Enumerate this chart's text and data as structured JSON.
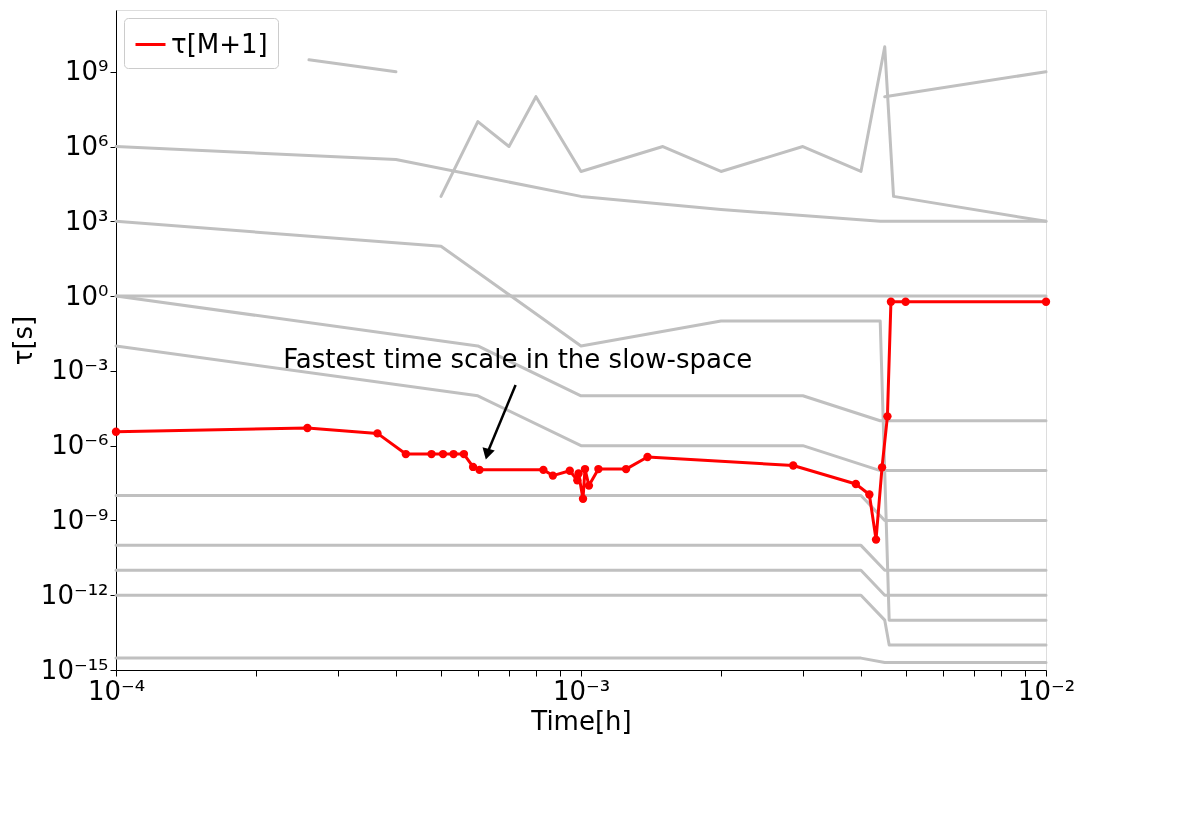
{
  "chart_data": {
    "type": "line",
    "xlabel": "Time[h]",
    "ylabel": "τ[s]",
    "log": "xy",
    "grid": false,
    "legend": "top left",
    "xlim": [
      0.0001,
      0.01
    ],
    "ylim": [
      1e-15,
      300000000000.0
    ],
    "xticks": [
      {
        "value": 0.0001,
        "label": "10⁻⁴"
      },
      {
        "value": 0.0002,
        "label": null
      },
      {
        "value": 0.0003,
        "label": null
      },
      {
        "value": 0.0004,
        "label": null
      },
      {
        "value": 0.0005,
        "label": null
      },
      {
        "value": 0.0006,
        "label": null
      },
      {
        "value": 0.0007,
        "label": null
      },
      {
        "value": 0.0008,
        "label": null
      },
      {
        "value": 0.0009,
        "label": null
      },
      {
        "value": 0.001,
        "label": "10⁻³"
      },
      {
        "value": 0.002,
        "label": null
      },
      {
        "value": 0.003,
        "label": null
      },
      {
        "value": 0.004,
        "label": null
      },
      {
        "value": 0.005,
        "label": null
      },
      {
        "value": 0.006,
        "label": null
      },
      {
        "value": 0.007,
        "label": null
      },
      {
        "value": 0.008,
        "label": null
      },
      {
        "value": 0.009,
        "label": null
      },
      {
        "value": 0.01,
        "label": "10⁻²"
      }
    ],
    "yticks": [
      {
        "value": 1e-15,
        "label": "10⁻¹⁵"
      },
      {
        "value": 1e-12,
        "label": "10⁻¹²"
      },
      {
        "value": 1e-09,
        "label": "10⁻⁹"
      },
      {
        "value": 1e-06,
        "label": "10⁻⁶"
      },
      {
        "value": 0.001,
        "label": "10⁻³"
      },
      {
        "value": 1,
        "label": "10⁰"
      },
      {
        "value": 1000,
        "label": "10³"
      },
      {
        "value": 1000000,
        "label": "10⁶"
      },
      {
        "value": 1000000000,
        "label": "10⁹"
      }
    ],
    "annotations": [
      {
        "text": "Fastest time scale in the slow-space",
        "x": 0.00063,
        "y": 5.4e-07
      }
    ],
    "series": [
      {
        "color": "#c0c0c0",
        "marker": "none",
        "x": [
          0.00026,
          0.0004
        ],
        "values": [
          3000000000.0,
          1000000000.0
        ]
      },
      {
        "color": "#c0c0c0",
        "marker": "none",
        "x": [
          0.0045,
          0.01
        ],
        "values": [
          100000000.0,
          1000000000.0
        ]
      },
      {
        "color": "#c0c0c0",
        "marker": "none",
        "x": [
          0.0001,
          0.0004,
          0.001,
          0.002,
          0.0044,
          0.01
        ],
        "values": [
          1000000.0,
          300000.0,
          10000.0,
          3000.0,
          1000.0,
          1000.0
        ]
      },
      {
        "color": "#c0c0c0",
        "marker": "none",
        "x": [
          0.0005,
          0.0006,
          0.0007,
          0.0008,
          0.001,
          0.0015,
          0.002,
          0.003,
          0.004,
          0.0045,
          0.0047,
          0.01
        ],
        "values": [
          10000.0,
          10000000.0,
          1000000.0,
          100000000.0,
          100000.0,
          1000000.0,
          100000.0,
          1000000.0,
          100000.0,
          10000000000.0,
          10000.0,
          1000.0
        ]
      },
      {
        "color": "#c0c0c0",
        "marker": "none",
        "x": [
          0.0001,
          0.01
        ],
        "values": [
          1,
          1
        ]
      },
      {
        "color": "#c0c0c0",
        "marker": "none",
        "x": [
          0.0001,
          0.0005,
          0.001,
          0.002,
          0.0044,
          0.0046,
          0.01
        ],
        "values": [
          1000,
          100,
          0.01,
          0.1,
          0.1,
          1e-13,
          1e-13
        ]
      },
      {
        "color": "#c0c0c0",
        "marker": "none",
        "x": [
          0.0001,
          0.0006,
          0.001,
          0.003,
          0.0044,
          0.0046,
          0.01
        ],
        "values": [
          1,
          0.01,
          0.0001,
          0.0001,
          1e-05,
          1e-05,
          1e-05
        ]
      },
      {
        "color": "#c0c0c0",
        "marker": "none",
        "x": [
          0.0001,
          0.0006,
          0.001,
          0.003,
          0.0044,
          0.0046,
          0.01
        ],
        "values": [
          0.01,
          0.0001,
          1e-06,
          1e-06,
          1e-07,
          1e-07,
          1e-07
        ]
      },
      {
        "color": "#c0c0c0",
        "marker": "none",
        "x": [
          0.0001,
          0.001,
          0.004,
          0.0045,
          0.0046,
          0.01
        ],
        "values": [
          1e-08,
          1e-08,
          1e-08,
          1e-09,
          1e-09,
          1e-09
        ]
      },
      {
        "color": "#c0c0c0",
        "marker": "none",
        "x": [
          0.0001,
          0.001,
          0.004,
          0.0045,
          0.0046,
          0.01
        ],
        "values": [
          1e-10,
          1e-10,
          1e-10,
          1e-11,
          1e-11,
          1e-11
        ]
      },
      {
        "color": "#c0c0c0",
        "marker": "none",
        "x": [
          0.0001,
          0.001,
          0.004,
          0.0045,
          0.0046,
          0.01
        ],
        "values": [
          1e-11,
          1e-11,
          1e-11,
          1e-12,
          1e-12,
          1e-12
        ]
      },
      {
        "color": "#c0c0c0",
        "marker": "none",
        "x": [
          0.0001,
          0.004,
          0.0045,
          0.0046,
          0.01
        ],
        "values": [
          1e-12,
          1e-12,
          1e-13,
          1e-14,
          1e-14
        ]
      },
      {
        "color": "#c0c0c0",
        "marker": "none",
        "x": [
          0.0001,
          0.004,
          0.0045,
          0.0046,
          0.01
        ],
        "values": [
          3e-15,
          3e-15,
          2e-15,
          2e-15,
          2e-15
        ]
      },
      {
        "name": "τ[M+1]",
        "color": "#ff0000",
        "marker": "circle",
        "x": [
          0.0001,
          0.000258,
          0.000365,
          0.00042,
          0.000477,
          0.000505,
          0.000532,
          0.00056,
          0.000586,
          0.000605,
          0.00083,
          0.00087,
          0.000946,
          0.000982,
          0.000988,
          0.00101,
          0.00102,
          0.00104,
          0.00109,
          0.00125,
          0.00139,
          0.00286,
          0.0039,
          0.00417,
          0.00431,
          0.00444,
          0.00456,
          0.00464,
          0.00499,
          0.01
        ],
        "values": [
          3.6e-06,
          5.1e-06,
          3.1e-06,
          4.6e-07,
          4.6e-07,
          4.6e-07,
          4.6e-07,
          4.6e-07,
          1.4e-07,
          1.07e-07,
          1.07e-07,
          6.3e-08,
          9.8e-08,
          4.1e-08,
          7.6e-08,
          7.4e-09,
          1.15e-07,
          2.5e-08,
          1.15e-07,
          1.15e-07,
          3.5e-07,
          1.6e-07,
          2.9e-08,
          1.1e-08,
          1.7e-10,
          1.35e-07,
          1.5e-05,
          0.59,
          0.59,
          0.59
        ]
      }
    ]
  }
}
